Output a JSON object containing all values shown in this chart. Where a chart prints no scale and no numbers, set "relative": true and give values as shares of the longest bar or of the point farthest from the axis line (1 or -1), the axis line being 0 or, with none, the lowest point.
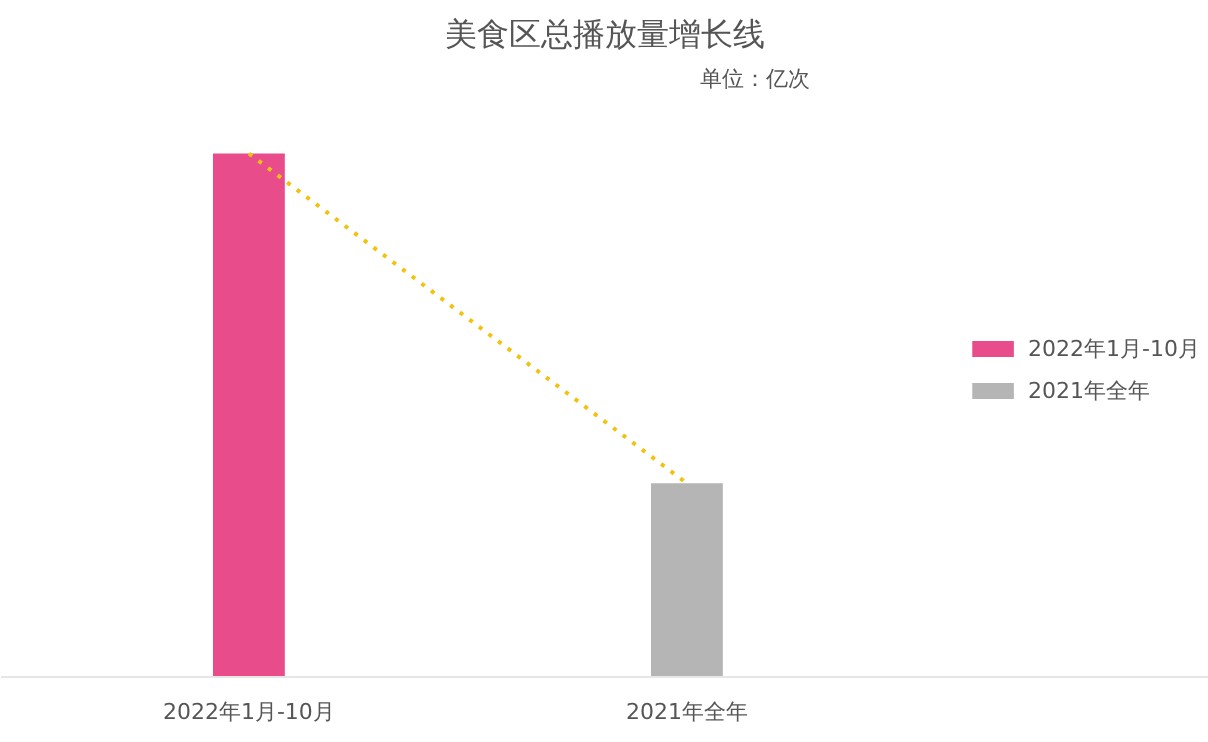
{
  "chart_data": {
    "type": "bar",
    "title": "美食区总播放量增长线",
    "subtitle": "单位：亿次",
    "categories": [
      "2022年1月-10月",
      "2021年全年"
    ],
    "relative": true,
    "legend": "right",
    "series": [
      {
        "name": "2022年1月-10月",
        "color": "#e84c8b",
        "values": [
          1,
          null
        ]
      },
      {
        "name": "2021年全年",
        "color": "#b4b5b4",
        "values": [
          null,
          0.37
        ]
      },
      {
        "type": "line",
        "color": "#f2c20f",
        "values": [
          1,
          0.37
        ],
        "line_style": "dotted",
        "marker": "none"
      }
    ]
  }
}
